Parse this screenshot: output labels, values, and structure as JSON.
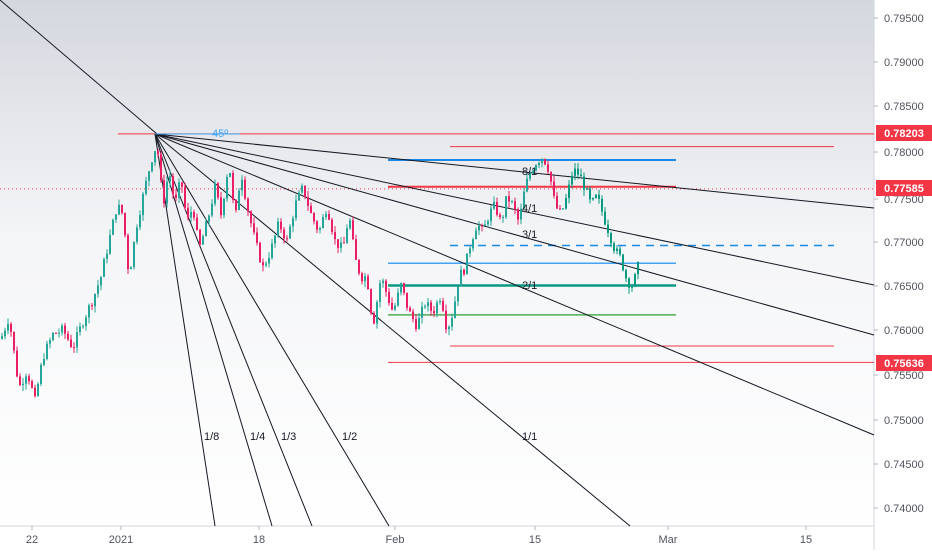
{
  "chart_data": {
    "type": "candlestick",
    "price_axis": {
      "ticks": [
        "0.79500",
        "0.79000",
        "0.78500",
        "0.78000",
        "0.77500",
        "0.77000",
        "0.76500",
        "0.76000",
        "0.75500",
        "0.75000",
        "0.74500",
        "0.74000"
      ],
      "range": [
        0.7383,
        0.799
      ]
    },
    "time_axis": {
      "ticks": [
        "22",
        "2021",
        "18",
        "Feb",
        "15",
        "Mar",
        "15"
      ]
    },
    "price_labels": [
      {
        "text": "0.78203",
        "value": 0.78203,
        "color": "#f23645"
      },
      {
        "text": "0.77585",
        "value": 0.77585,
        "color": "#f23645"
      },
      {
        "text": "0.75636",
        "value": 0.75636,
        "color": "#f23645"
      }
    ],
    "gann_fan": {
      "angle_label": "45º",
      "ratio_labels": [
        "1/8",
        "1/4",
        "1/3",
        "1/2",
        "1/1",
        "2/1",
        "3/1",
        "4/1",
        "8/1"
      ]
    },
    "horizontal_levels": [
      {
        "value": 0.78203,
        "color": "#f23645",
        "style": "solid"
      },
      {
        "value": 0.7806,
        "color": "#f23645",
        "style": "solid"
      },
      {
        "value": 0.7791,
        "color": "#1e88e5",
        "style": "solid"
      },
      {
        "value": 0.7761,
        "color": "#f23645",
        "style": "solid"
      },
      {
        "value": 0.77585,
        "color": "#f23645",
        "style": "dotted"
      },
      {
        "value": 0.7695,
        "color": "#1e88e5",
        "style": "dashed"
      },
      {
        "value": 0.7675,
        "color": "#42a5f5",
        "style": "solid"
      },
      {
        "value": 0.765,
        "color": "#089981",
        "style": "solid"
      },
      {
        "value": 0.7617,
        "color": "#4caf50",
        "style": "solid"
      },
      {
        "value": 0.7582,
        "color": "#f23645",
        "style": "solid"
      },
      {
        "value": 0.75636,
        "color": "#f23645",
        "style": "solid"
      }
    ],
    "colors": {
      "up": "#26a69a",
      "down": "#e91e63",
      "recent": "#089981",
      "fan": "#131722",
      "level_red": "#f23645",
      "level_blue": "#1e88e5",
      "level_green": "#4caf50",
      "background_top": "#d1d4dc"
    }
  }
}
